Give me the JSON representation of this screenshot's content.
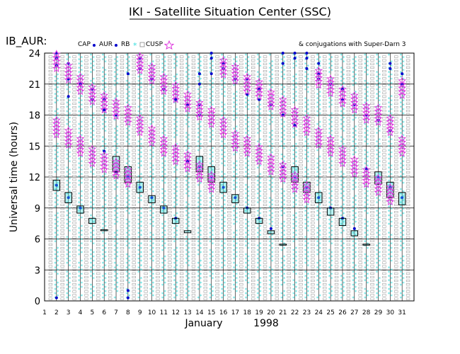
{
  "header": {
    "title": "IKI - Satellite Situation Center (SSC)",
    "instrument": "IB_AUR:",
    "conjugations": "& conjugations with Super-Darn 3"
  },
  "legend": [
    {
      "label": "CAP",
      "color": "#0000cc",
      "marker": "dot"
    },
    {
      "label": "AUR",
      "color": "#0000cc",
      "marker": "dot"
    },
    {
      "label": "RB",
      "color": "#33dddd",
      "marker": "asterisk"
    },
    {
      "label": "CUSP",
      "color": "#888888",
      "marker": "square"
    },
    {
      "label": "",
      "color": "#dd33dd",
      "marker": "star"
    }
  ],
  "chart_data": {
    "type": "scatter",
    "title": "IKI - Satellite Situation Center (SSC)",
    "ylabel": "Universal time (hours)",
    "xlabel": "January",
    "year": "1998",
    "x_ticks": [
      1,
      2,
      3,
      4,
      5,
      6,
      7,
      8,
      9,
      10,
      11,
      12,
      13,
      14,
      15,
      16,
      17,
      18,
      19,
      20,
      21,
      22,
      23,
      24,
      25,
      26,
      27,
      28,
      29,
      30,
      31
    ],
    "y_ticks": [
      0,
      3,
      6,
      9,
      12,
      15,
      18,
      21,
      24
    ],
    "xlim": [
      1,
      32
    ],
    "ylim": [
      0,
      24
    ],
    "grid": true,
    "colors": {
      "cap_aur": "#0000cc",
      "rb": "#33dddd",
      "cusp": "#888888",
      "conjugation": "#dd33dd"
    },
    "conjugation_series": [
      {
        "name": "",
        "x": [
          2,
          3,
          4,
          5,
          6,
          7,
          8,
          9,
          10,
          11,
          12,
          13,
          14,
          15,
          16,
          17,
          18,
          19,
          20,
          21,
          22,
          23,
          24,
          25,
          26,
          27,
          28,
          29,
          30,
          31
        ],
        "y": [
          23.2,
          22.1,
          21.0,
          20.0,
          19.2,
          18.6,
          18.0,
          23.0,
          22.0,
          21.0,
          20.2,
          19.3,
          18.5,
          17.8,
          22.6,
          22.0,
          21.0,
          20.5,
          19.5,
          18.8,
          17.8,
          17.0,
          21.6,
          20.8,
          19.8,
          19.2,
          18.2,
          18.0,
          17.0,
          20.6
        ]
      },
      {
        "name": "",
        "x": [
          2,
          3,
          4,
          5,
          6,
          7,
          8,
          9,
          10,
          11,
          12,
          13,
          14,
          15,
          16,
          17,
          18,
          19,
          20,
          21,
          22,
          23,
          24,
          25,
          26,
          27,
          28,
          29,
          30,
          31
        ],
        "y": [
          16.8,
          15.8,
          15.0,
          14.0,
          13.4,
          12.8,
          12.0,
          17.0,
          16.0,
          15.0,
          14.2,
          13.5,
          12.5,
          11.5,
          16.8,
          15.5,
          15.0,
          14.2,
          13.2,
          12.5,
          11.5,
          10.5,
          15.8,
          15.0,
          14.0,
          13.0,
          12.0,
          11.2,
          10.3,
          15.0
        ]
      }
    ],
    "box_series": [
      {
        "day": 2,
        "y0": 10.7,
        "y1": 11.7
      },
      {
        "day": 3,
        "y0": 9.5,
        "y1": 10.5
      },
      {
        "day": 4,
        "y0": 8.5,
        "y1": 9.2
      },
      {
        "day": 5,
        "y0": 7.5,
        "y1": 8.0
      },
      {
        "day": 6,
        "y0": 6.8,
        "y1": 6.9
      },
      {
        "day": 7,
        "y0": 12.5,
        "y1": 14.0
      },
      {
        "day": 8,
        "y0": 11.5,
        "y1": 13.0
      },
      {
        "day": 9,
        "y0": 10.5,
        "y1": 11.5
      },
      {
        "day": 10,
        "y0": 9.5,
        "y1": 10.2
      },
      {
        "day": 11,
        "y0": 8.5,
        "y1": 9.2
      },
      {
        "day": 12,
        "y0": 7.5,
        "y1": 8.0
      },
      {
        "day": 13,
        "y0": 6.6,
        "y1": 6.8
      },
      {
        "day": 14,
        "y0": 12.5,
        "y1": 14.0
      },
      {
        "day": 15,
        "y0": 11.5,
        "y1": 13.0
      },
      {
        "day": 16,
        "y0": 10.5,
        "y1": 11.5
      },
      {
        "day": 17,
        "y0": 9.5,
        "y1": 10.3
      },
      {
        "day": 18,
        "y0": 8.5,
        "y1": 9.0
      },
      {
        "day": 19,
        "y0": 7.5,
        "y1": 8.0
      },
      {
        "day": 20,
        "y0": 6.5,
        "y1": 6.8
      },
      {
        "day": 21,
        "y0": 5.4,
        "y1": 5.5
      },
      {
        "day": 22,
        "y0": 11.5,
        "y1": 13.0
      },
      {
        "day": 23,
        "y0": 10.5,
        "y1": 11.5
      },
      {
        "day": 24,
        "y0": 9.5,
        "y1": 10.5
      },
      {
        "day": 25,
        "y0": 8.3,
        "y1": 9.0
      },
      {
        "day": 26,
        "y0": 7.3,
        "y1": 8.0
      },
      {
        "day": 27,
        "y0": 6.3,
        "y1": 6.8
      },
      {
        "day": 28,
        "y0": 5.4,
        "y1": 5.5
      },
      {
        "day": 29,
        "y0": 11.3,
        "y1": 12.5
      },
      {
        "day": 30,
        "y0": 10.0,
        "y1": 11.5
      },
      {
        "day": 31,
        "y0": 9.3,
        "y1": 10.5
      }
    ],
    "aur_dot_series": [
      {
        "day": 2,
        "y": [
          0.3,
          11.2,
          22.8,
          23.5,
          24.0
        ]
      },
      {
        "day": 3,
        "y": [
          10.0,
          19.8,
          21.5,
          23.0
        ]
      },
      {
        "day": 4,
        "y": [
          9.0,
          21.0
        ]
      },
      {
        "day": 5,
        "y": [
          19.5,
          20.5
        ]
      },
      {
        "day": 6,
        "y": [
          14.5,
          18.5,
          19.5
        ]
      },
      {
        "day": 7,
        "y": [
          12.5,
          18.0
        ]
      },
      {
        "day": 8,
        "y": [
          0.3,
          1.0,
          12.0,
          22.0
        ]
      },
      {
        "day": 9,
        "y": [
          11.0,
          22.5,
          23.5
        ]
      },
      {
        "day": 10,
        "y": [
          10.0,
          21.5
        ]
      },
      {
        "day": 11,
        "y": [
          9.0,
          20.5
        ]
      },
      {
        "day": 12,
        "y": [
          8.0,
          19.5
        ]
      },
      {
        "day": 13,
        "y": [
          13.5,
          19.0
        ]
      },
      {
        "day": 14,
        "y": [
          13.0,
          18.0,
          19.0,
          21.0,
          22.0
        ]
      },
      {
        "day": 15,
        "y": [
          12.0,
          22.0,
          23.5,
          24.0
        ]
      },
      {
        "day": 16,
        "y": [
          11.0,
          22.5,
          23.0
        ]
      },
      {
        "day": 17,
        "y": [
          10.0,
          21.5
        ]
      },
      {
        "day": 18,
        "y": [
          9.0,
          20.0,
          21.5
        ]
      },
      {
        "day": 19,
        "y": [
          8.0,
          19.5,
          20.5
        ]
      },
      {
        "day": 20,
        "y": [
          7.0,
          19.0
        ]
      },
      {
        "day": 21,
        "y": [
          13.0,
          18.0,
          23.0,
          24.0
        ]
      },
      {
        "day": 22,
        "y": [
          12.0,
          17.0,
          23.5,
          24.0
        ]
      },
      {
        "day": 23,
        "y": [
          11.0,
          22.5,
          23.5,
          24.0
        ]
      },
      {
        "day": 24,
        "y": [
          10.0,
          21.5,
          22.0,
          23.0
        ]
      },
      {
        "day": 25,
        "y": [
          9.0,
          21.0
        ]
      },
      {
        "day": 26,
        "y": [
          8.0,
          19.5,
          20.5
        ]
      },
      {
        "day": 27,
        "y": [
          7.0,
          19.0
        ]
      },
      {
        "day": 28,
        "y": [
          12.8,
          18.0
        ]
      },
      {
        "day": 29,
        "y": [
          12.0,
          17.5
        ]
      },
      {
        "day": 30,
        "y": [
          11.0,
          16.5,
          22.5,
          23.0
        ]
      },
      {
        "day": 31,
        "y": [
          10.0,
          21.0,
          22.0
        ]
      }
    ]
  }
}
